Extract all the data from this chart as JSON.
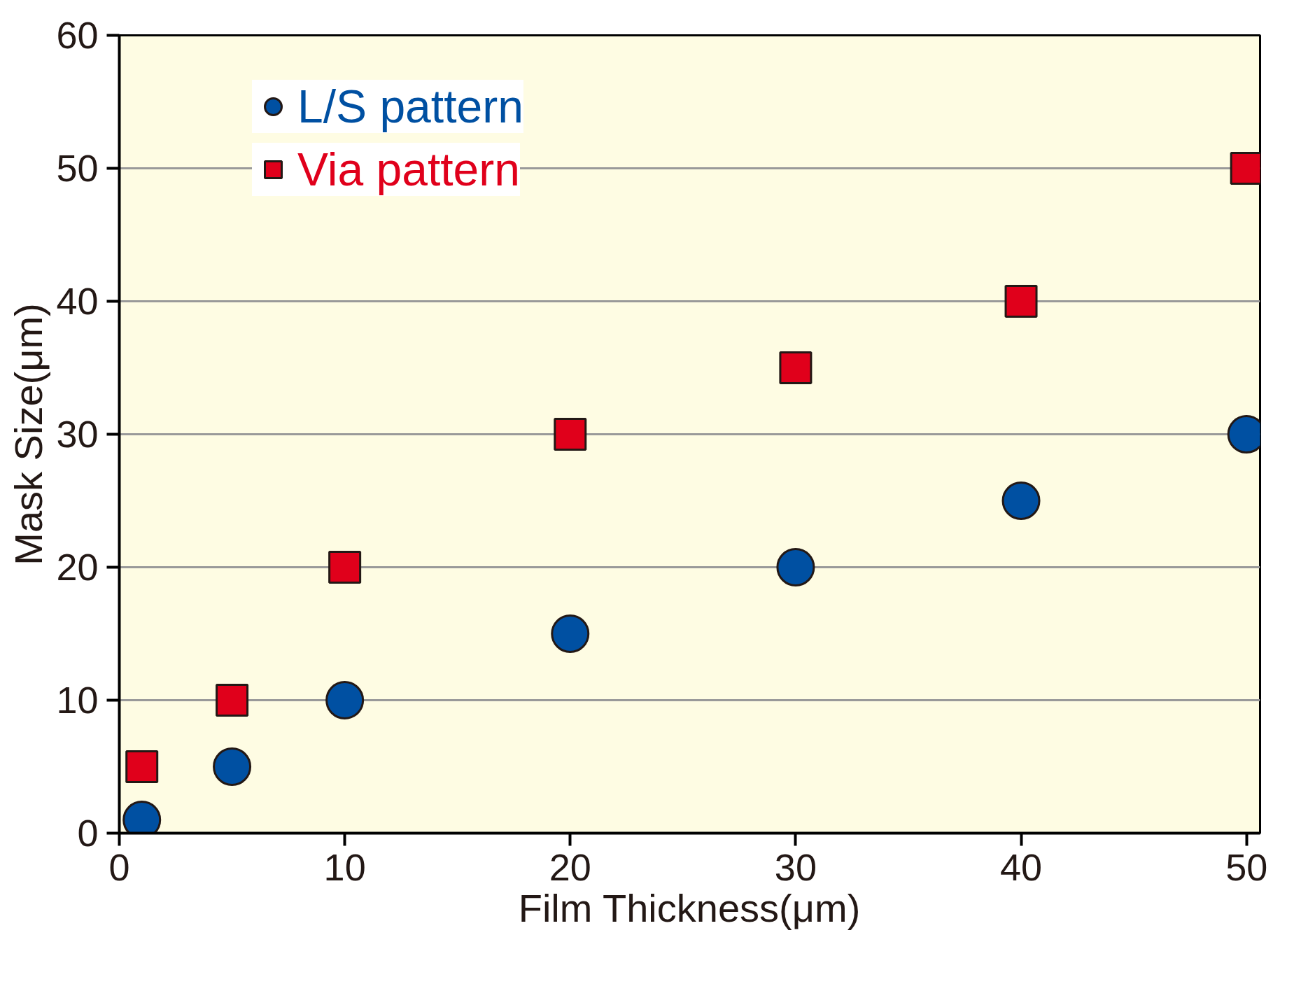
{
  "chart_data": {
    "type": "scatter",
    "xlabel": "Film Thickness(μm)",
    "ylabel": "Mask Size(μm)",
    "xlim": [
      0,
      50.6
    ],
    "ylim": [
      0,
      60
    ],
    "xticks": [
      0,
      10,
      20,
      30,
      40,
      50
    ],
    "yticks": [
      0,
      10,
      20,
      30,
      40,
      50,
      60
    ],
    "grid": "y",
    "legend": "top left",
    "series": [
      {
        "name": "L/S pattern",
        "color": "#0050a2",
        "marker": "circle",
        "x": [
          1,
          5,
          10,
          20,
          30,
          40,
          50
        ],
        "values": [
          1,
          5,
          10,
          15,
          20,
          25,
          30
        ]
      },
      {
        "name": "Via pattern",
        "color": "#e0001b",
        "marker": "square",
        "x": [
          1,
          5,
          10,
          20,
          30,
          40,
          50
        ],
        "values": [
          5,
          10,
          20,
          30,
          35,
          40,
          50
        ]
      }
    ]
  }
}
